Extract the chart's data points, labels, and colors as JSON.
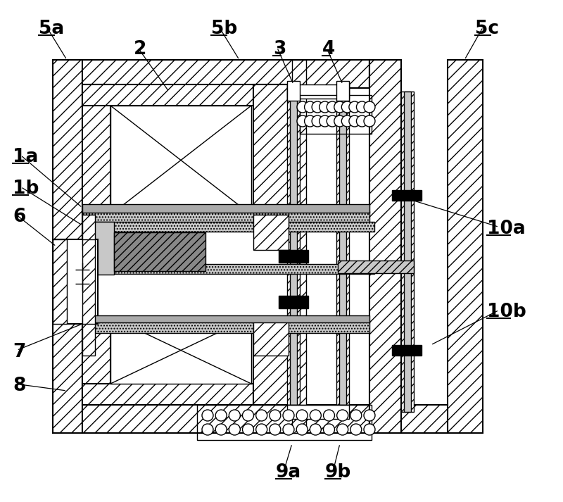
{
  "bg_color": "#ffffff",
  "lc": "#000000",
  "figsize": [
    8.0,
    7.13
  ],
  "dpi": 100,
  "labels": {
    "5a": [
      55,
      30,
      "left",
      "top"
    ],
    "2": [
      195,
      60,
      "left",
      "top"
    ],
    "5b": [
      295,
      30,
      "left",
      "top"
    ],
    "3": [
      388,
      57,
      "left",
      "top"
    ],
    "4": [
      460,
      57,
      "left",
      "top"
    ],
    "5c": [
      680,
      30,
      "left",
      "top"
    ],
    "1a": [
      18,
      205,
      "left",
      "center"
    ],
    "1b": [
      18,
      252,
      "left",
      "center"
    ],
    "6": [
      18,
      295,
      "left",
      "center"
    ],
    "10a": [
      690,
      310,
      "left",
      "center"
    ],
    "10b": [
      690,
      430,
      "left",
      "center"
    ],
    "7": [
      18,
      487,
      "left",
      "center"
    ],
    "8": [
      18,
      535,
      "left",
      "center"
    ],
    "9a": [
      395,
      660,
      "left",
      "top"
    ],
    "9b": [
      465,
      660,
      "left",
      "top"
    ]
  },
  "label_fontsize": 19,
  "label_fontweight": "bold"
}
